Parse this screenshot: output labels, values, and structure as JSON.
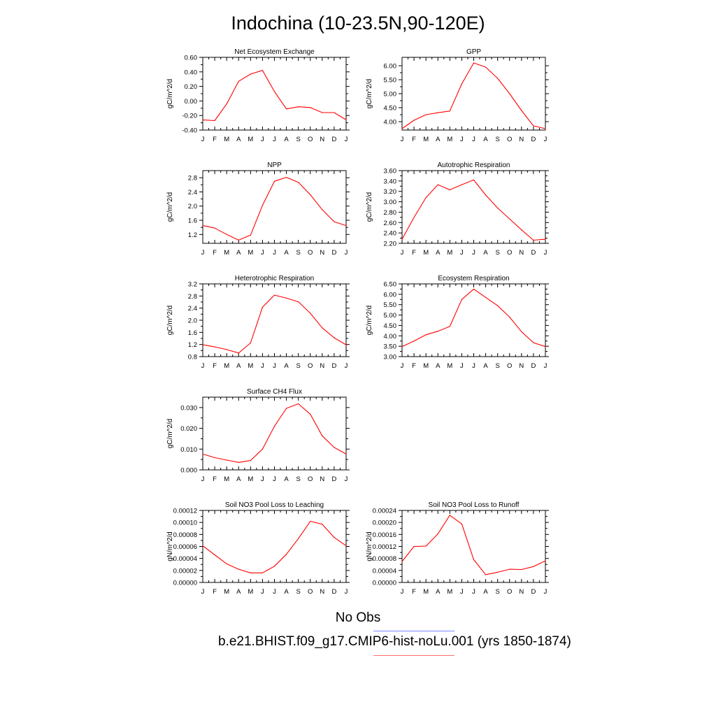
{
  "title": "Indochina (10-23.5N,90-120E)",
  "colors": {
    "model_line": "#ff0000",
    "obs_legend_line": "#7f86ff",
    "model_legend_line": "#ff6f6f",
    "axis": "#000000"
  },
  "legend": {
    "obs_label": "No Obs",
    "model_label": "b.e21.BHIST.f09_g17.CMIP6-hist-noLu.001 (yrs 1850-1874)"
  },
  "chart_data": [
    {
      "type": "line",
      "title": "Net Ecosystem Exchange",
      "ylabel": "gC/m^2/d",
      "categories": [
        "J",
        "F",
        "M",
        "A",
        "M",
        "J",
        "J",
        "A",
        "S",
        "O",
        "N",
        "D",
        "J"
      ],
      "ylim": [
        -0.4,
        0.6
      ],
      "yticks": [
        "0.60",
        "0.40",
        "0.20",
        "0.00",
        "-0.20",
        "-0.40"
      ],
      "series": [
        {
          "values": [
            -0.26,
            -0.27,
            -0.04,
            0.27,
            0.37,
            0.42,
            0.13,
            -0.11,
            -0.08,
            -0.09,
            -0.16,
            -0.16,
            -0.26
          ]
        }
      ]
    },
    {
      "type": "line",
      "title": "GPP",
      "ylabel": "gC/m^2/d",
      "categories": [
        "J",
        "F",
        "M",
        "A",
        "M",
        "J",
        "J",
        "A",
        "S",
        "O",
        "N",
        "D",
        "J"
      ],
      "ylim": [
        3.7,
        6.3
      ],
      "yticks": [
        "6.00",
        "5.50",
        "5.00",
        "4.50",
        "4.00"
      ],
      "series": [
        {
          "values": [
            3.75,
            4.05,
            4.25,
            4.32,
            4.38,
            5.35,
            6.1,
            5.95,
            5.55,
            5.0,
            4.4,
            3.85,
            3.75
          ]
        }
      ]
    },
    {
      "type": "line",
      "title": "NPP",
      "ylabel": "gC/m^2/d",
      "categories": [
        "J",
        "F",
        "M",
        "A",
        "M",
        "J",
        "J",
        "A",
        "S",
        "O",
        "N",
        "D",
        "J"
      ],
      "ylim": [
        0.95,
        3.0
      ],
      "yticks": [
        "2.8",
        "2.4",
        "2.0",
        "1.6",
        "1.2"
      ],
      "series": [
        {
          "values": [
            1.45,
            1.38,
            1.2,
            1.04,
            1.18,
            2.02,
            2.7,
            2.81,
            2.67,
            2.32,
            1.9,
            1.56,
            1.45
          ]
        }
      ]
    },
    {
      "type": "line",
      "title": "Autotrophic Respiration",
      "ylabel": "gC/m^2/d",
      "categories": [
        "J",
        "F",
        "M",
        "A",
        "M",
        "J",
        "J",
        "A",
        "S",
        "O",
        "N",
        "D",
        "J"
      ],
      "ylim": [
        2.2,
        3.6
      ],
      "yticks": [
        "3.60",
        "3.40",
        "3.20",
        "3.00",
        "2.80",
        "2.60",
        "2.40",
        "2.20"
      ],
      "series": [
        {
          "values": [
            2.28,
            2.7,
            3.08,
            3.33,
            3.23,
            3.33,
            3.42,
            3.13,
            2.88,
            2.67,
            2.46,
            2.26,
            2.28
          ]
        }
      ]
    },
    {
      "type": "line",
      "title": "Heterotrophic Respiration",
      "ylabel": "gC/m^2/d",
      "categories": [
        "J",
        "F",
        "M",
        "A",
        "M",
        "J",
        "J",
        "A",
        "S",
        "O",
        "N",
        "D",
        "J"
      ],
      "ylim": [
        0.8,
        3.2
      ],
      "yticks": [
        "3.2",
        "2.8",
        "2.4",
        "2.0",
        "1.6",
        "1.2",
        "0.8"
      ],
      "series": [
        {
          "values": [
            1.19,
            1.12,
            1.03,
            0.92,
            1.25,
            2.43,
            2.83,
            2.73,
            2.61,
            2.23,
            1.75,
            1.42,
            1.19
          ]
        }
      ]
    },
    {
      "type": "line",
      "title": "Ecosystem Respiration",
      "ylabel": "gC/m^2/d",
      "categories": [
        "J",
        "F",
        "M",
        "A",
        "M",
        "J",
        "J",
        "A",
        "S",
        "O",
        "N",
        "D",
        "J"
      ],
      "ylim": [
        3.0,
        6.5
      ],
      "yticks": [
        "6.50",
        "6.00",
        "5.50",
        "5.00",
        "4.50",
        "4.00",
        "3.50",
        "3.00"
      ],
      "series": [
        {
          "values": [
            3.48,
            3.75,
            4.05,
            4.22,
            4.45,
            5.75,
            6.25,
            5.85,
            5.45,
            4.9,
            4.2,
            3.67,
            3.48
          ]
        }
      ]
    },
    {
      "type": "line",
      "title": "Surface CH4 Flux",
      "ylabel": "gC/m^2/d",
      "categories": [
        "J",
        "F",
        "M",
        "A",
        "M",
        "J",
        "J",
        "A",
        "S",
        "O",
        "N",
        "D",
        "J"
      ],
      "ylim": [
        0.0,
        0.035
      ],
      "yticks": [
        "0.030",
        "0.020",
        "0.010",
        "0.000"
      ],
      "series": [
        {
          "values": [
            0.0076,
            0.0059,
            0.0047,
            0.0036,
            0.0045,
            0.01,
            0.021,
            0.0296,
            0.0318,
            0.0268,
            0.0164,
            0.0108,
            0.0076
          ]
        }
      ]
    },
    {
      "type": "line",
      "title": "Soil NO3 Pool Loss to Leaching",
      "ylabel": "gN/m^2/d",
      "categories": [
        "J",
        "F",
        "M",
        "A",
        "M",
        "J",
        "J",
        "A",
        "S",
        "O",
        "N",
        "D",
        "J"
      ],
      "ylim": [
        0.0,
        0.00012
      ],
      "yticks": [
        "0.00012",
        "0.00010",
        "0.00008",
        "0.00006",
        "0.00004",
        "0.00002",
        "0.00000"
      ],
      "series": [
        {
          "values": [
            6.1e-05,
            4.6e-05,
            3.1e-05,
            2.2e-05,
            1.6e-05,
            1.6e-05,
            2.7e-05,
            4.7e-05,
            7.3e-05,
            0.000102,
            9.7e-05,
            7.5e-05,
            6.1e-05
          ]
        }
      ]
    },
    {
      "type": "line",
      "title": "Soil NO3 Pool Loss to Runoff",
      "ylabel": "gN/m^2/d",
      "categories": [
        "J",
        "F",
        "M",
        "A",
        "M",
        "J",
        "J",
        "A",
        "S",
        "O",
        "N",
        "D",
        "J"
      ],
      "ylim": [
        0.0,
        0.00024
      ],
      "yticks": [
        "0.00024",
        "0.00020",
        "0.00016",
        "0.00012",
        "0.00008",
        "0.00004",
        "0.00000"
      ],
      "series": [
        {
          "values": [
            7e-05,
            0.00012,
            0.000121,
            0.000162,
            0.000224,
            0.000195,
            7.6e-05,
            2.6e-05,
            3.4e-05,
            4.4e-05,
            4.3e-05,
            5.3e-05,
            7.2e-05
          ]
        }
      ]
    }
  ]
}
